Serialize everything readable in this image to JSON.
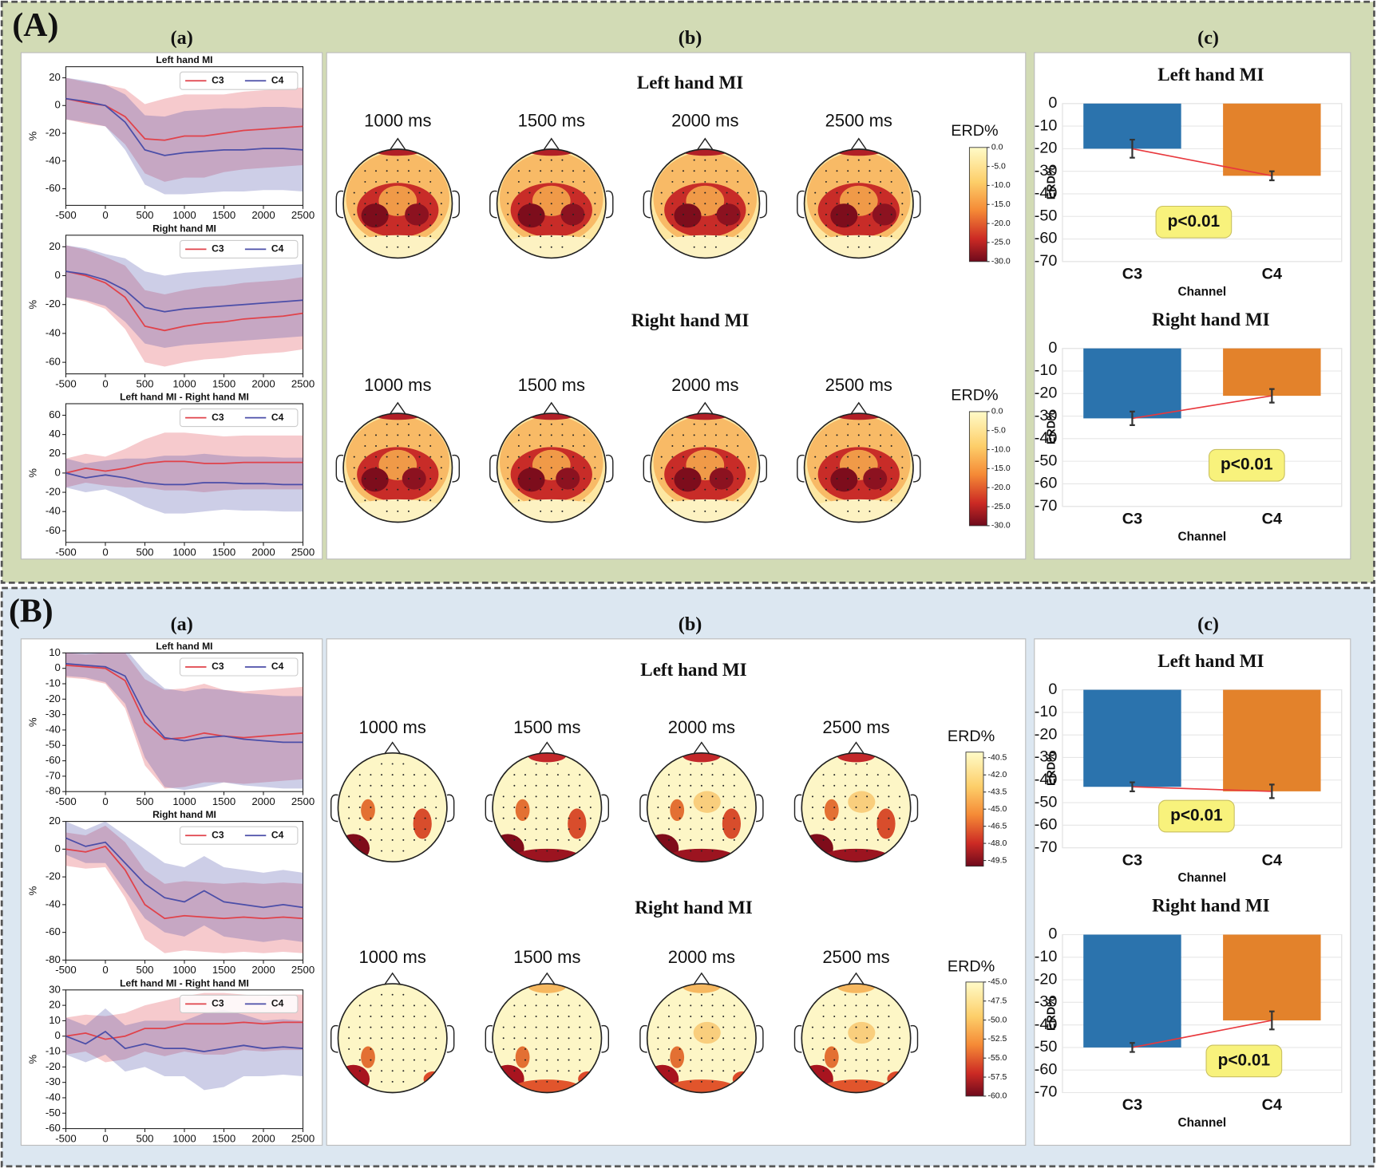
{
  "panels": [
    {
      "label": "(A)",
      "sub_labels": [
        "(a)",
        "(b)",
        "(c)"
      ]
    },
    {
      "label": "(B)",
      "sub_labels": [
        "(a)",
        "(b)",
        "(c)"
      ]
    }
  ],
  "chart_data": [
    {
      "type": "line",
      "title": "Left hand MI",
      "ylabel": "%",
      "x": [
        -500,
        -250,
        0,
        250,
        500,
        750,
        1000,
        1250,
        1500,
        1750,
        2000,
        2250,
        2500
      ],
      "xlim": [
        -500,
        2500
      ],
      "xticks": [
        -500,
        0,
        500,
        1000,
        1500,
        2000,
        2500
      ],
      "ylim": [
        -72,
        28
      ],
      "yticks": [
        -60,
        -40,
        -20,
        0,
        20
      ],
      "legend": "upper right",
      "series": [
        {
          "name": "C3",
          "color": "#e0424a",
          "values": [
            5,
            2,
            0,
            -8,
            -24,
            -25,
            -22,
            -22,
            -20,
            -18,
            -17,
            -16,
            -15
          ],
          "error": [
            15,
            15,
            15,
            20,
            25,
            30,
            30,
            30,
            28,
            28,
            28,
            28,
            28
          ]
        },
        {
          "name": "C4",
          "color": "#4b4ea8",
          "values": [
            5,
            3,
            0,
            -12,
            -32,
            -36,
            -34,
            -33,
            -32,
            -32,
            -31,
            -31,
            -32
          ],
          "error": [
            15,
            15,
            15,
            20,
            25,
            28,
            30,
            30,
            30,
            30,
            30,
            30,
            30
          ]
        }
      ]
    },
    {
      "type": "line",
      "title": "Right hand MI",
      "ylabel": "%",
      "x": [
        -500,
        -250,
        0,
        250,
        500,
        750,
        1000,
        1250,
        1500,
        1750,
        2000,
        2250,
        2500
      ],
      "xlim": [
        -500,
        2500
      ],
      "xticks": [
        -500,
        0,
        500,
        1000,
        1500,
        2000,
        2500
      ],
      "ylim": [
        -68,
        28
      ],
      "yticks": [
        -60,
        -40,
        -20,
        0,
        20
      ],
      "legend": "upper right",
      "series": [
        {
          "name": "C3",
          "color": "#e0424a",
          "values": [
            3,
            0,
            -5,
            -15,
            -35,
            -38,
            -35,
            -33,
            -32,
            -30,
            -29,
            -28,
            -26
          ],
          "error": [
            18,
            18,
            18,
            22,
            25,
            25,
            25,
            25,
            25,
            25,
            25,
            25,
            25
          ]
        },
        {
          "name": "C4",
          "color": "#4b4ea8",
          "values": [
            3,
            1,
            -3,
            -10,
            -22,
            -25,
            -23,
            -22,
            -21,
            -20,
            -19,
            -18,
            -17
          ],
          "error": [
            18,
            18,
            18,
            22,
            25,
            25,
            25,
            25,
            25,
            25,
            25,
            25,
            25
          ]
        }
      ]
    },
    {
      "type": "line",
      "title": "Left hand MI - Right hand MI",
      "ylabel": "%",
      "x": [
        -500,
        -250,
        0,
        250,
        500,
        750,
        1000,
        1250,
        1500,
        1750,
        2000,
        2250,
        2500
      ],
      "xlim": [
        -500,
        2500
      ],
      "xticks": [
        -500,
        0,
        500,
        1000,
        1500,
        2000,
        2500
      ],
      "ylim": [
        -72,
        72
      ],
      "yticks": [
        -60,
        -40,
        -20,
        0,
        20,
        40,
        60
      ],
      "legend": "upper right",
      "series": [
        {
          "name": "C3",
          "color": "#e0424a",
          "values": [
            0,
            5,
            2,
            5,
            10,
            12,
            12,
            10,
            10,
            11,
            11,
            11,
            11
          ],
          "error": [
            15,
            15,
            15,
            20,
            25,
            30,
            30,
            30,
            28,
            28,
            28,
            28,
            28
          ]
        },
        {
          "name": "C4",
          "color": "#4b4ea8",
          "values": [
            0,
            -5,
            -2,
            -5,
            -10,
            -12,
            -12,
            -10,
            -10,
            -11,
            -11,
            -12,
            -12
          ],
          "error": [
            15,
            15,
            15,
            20,
            25,
            30,
            30,
            30,
            28,
            28,
            28,
            28,
            28
          ]
        }
      ]
    },
    {
      "type": "topomap",
      "title": "Left hand MI",
      "times": [
        "1000 ms",
        "1500 ms",
        "2000 ms",
        "2500 ms"
      ],
      "colorbar_label": "ERD%",
      "clim": [
        0,
        -30
      ],
      "cticks": [
        {
          "value": 0,
          "label": "0.0"
        },
        {
          "value": -5,
          "label": "-5.0"
        },
        {
          "value": -10,
          "label": "-10.0"
        },
        {
          "value": -15,
          "label": "-15.0"
        },
        {
          "value": -20,
          "label": "-20.0"
        },
        {
          "value": -25,
          "label": "-25.0"
        },
        {
          "value": -30,
          "label": "-30.0"
        }
      ]
    },
    {
      "type": "topomap",
      "title": "Right hand MI",
      "times": [
        "1000 ms",
        "1500 ms",
        "2000 ms",
        "2500 ms"
      ],
      "colorbar_label": "ERD%",
      "clim": [
        0,
        -30
      ],
      "cticks": [
        {
          "value": 0,
          "label": "0.0"
        },
        {
          "value": -5,
          "label": "-5.0"
        },
        {
          "value": -10,
          "label": "-10.0"
        },
        {
          "value": -15,
          "label": "-15.0"
        },
        {
          "value": -20,
          "label": "-20.0"
        },
        {
          "value": -25,
          "label": "-25.0"
        },
        {
          "value": -30,
          "label": "-30.0"
        }
      ]
    },
    {
      "type": "bar",
      "title": "Left hand MI",
      "xlabel": "Channel",
      "ylabel": "ERD%",
      "categories": [
        "C3",
        "C4"
      ],
      "values": [
        -20,
        -32
      ],
      "errors": [
        4,
        2
      ],
      "colors": [
        "#2b73ad",
        "#e3822b"
      ],
      "ylim": [
        -70,
        0
      ],
      "yticks": [
        0,
        -10,
        -20,
        -30,
        -40,
        -50,
        -60,
        -70
      ],
      "grid": true,
      "annotation": "p<0.01",
      "line_color": "#e8383d"
    },
    {
      "type": "bar",
      "title": "Right hand MI",
      "xlabel": "Channel",
      "ylabel": "ERD%",
      "categories": [
        "C3",
        "C4"
      ],
      "values": [
        -31,
        -21
      ],
      "errors": [
        3,
        3
      ],
      "colors": [
        "#2b73ad",
        "#e3822b"
      ],
      "ylim": [
        -70,
        0
      ],
      "yticks": [
        0,
        -10,
        -20,
        -30,
        -40,
        -50,
        -60,
        -70
      ],
      "grid": true,
      "annotation": "p<0.01",
      "line_color": "#e8383d"
    },
    {
      "type": "line",
      "title": "Left hand MI",
      "ylabel": "%",
      "x": [
        -500,
        -250,
        0,
        250,
        500,
        750,
        1000,
        1250,
        1500,
        1750,
        2000,
        2250,
        2500
      ],
      "xlim": [
        -500,
        2500
      ],
      "xticks": [
        -500,
        0,
        500,
        1000,
        1500,
        2000,
        2500
      ],
      "ylim": [
        -80,
        10
      ],
      "yticks": [
        -80,
        -70,
        -60,
        -50,
        -40,
        -30,
        -20,
        -10,
        0,
        10
      ],
      "legend": "upper right",
      "series": [
        {
          "name": "C3",
          "color": "#e0424a",
          "values": [
            2,
            1,
            0,
            -8,
            -35,
            -46,
            -45,
            -42,
            -44,
            -45,
            -44,
            -43,
            -42
          ],
          "error": [
            8,
            8,
            10,
            18,
            28,
            32,
            32,
            32,
            30,
            30,
            30,
            30,
            30
          ]
        },
        {
          "name": "C4",
          "color": "#4b4ea8",
          "values": [
            3,
            2,
            1,
            -5,
            -30,
            -45,
            -47,
            -45,
            -44,
            -46,
            -47,
            -48,
            -48
          ],
          "error": [
            8,
            8,
            10,
            18,
            28,
            32,
            32,
            32,
            30,
            30,
            30,
            30,
            30
          ]
        }
      ]
    },
    {
      "type": "line",
      "title": "Right hand MI",
      "ylabel": "%",
      "x": [
        -500,
        -250,
        0,
        250,
        500,
        750,
        1000,
        1250,
        1500,
        1750,
        2000,
        2250,
        2500
      ],
      "xlim": [
        -500,
        2500
      ],
      "xticks": [
        -500,
        0,
        500,
        1000,
        1500,
        2000,
        2500
      ],
      "ylim": [
        -80,
        20
      ],
      "yticks": [
        -80,
        -60,
        -40,
        -20,
        0,
        20
      ],
      "legend": "upper right",
      "series": [
        {
          "name": "C3",
          "color": "#e0424a",
          "values": [
            0,
            -2,
            2,
            -15,
            -40,
            -50,
            -48,
            -49,
            -50,
            -49,
            -50,
            -49,
            -50
          ],
          "error": [
            12,
            12,
            15,
            20,
            25,
            25,
            25,
            25,
            25,
            25,
            25,
            25,
            25
          ]
        },
        {
          "name": "C4",
          "color": "#4b4ea8",
          "values": [
            8,
            2,
            5,
            -10,
            -25,
            -35,
            -38,
            -30,
            -38,
            -40,
            -42,
            -40,
            -42
          ],
          "error": [
            12,
            12,
            15,
            20,
            25,
            25,
            25,
            25,
            25,
            25,
            25,
            25,
            25
          ]
        }
      ]
    },
    {
      "type": "line",
      "title": "Left hand MI - Right hand MI",
      "ylabel": "%",
      "x": [
        -500,
        -250,
        0,
        250,
        500,
        750,
        1000,
        1250,
        1500,
        1750,
        2000,
        2250,
        2500
      ],
      "xlim": [
        -500,
        2500
      ],
      "xticks": [
        -500,
        0,
        500,
        1000,
        1500,
        2000,
        2500
      ],
      "ylim": [
        -60,
        30
      ],
      "yticks": [
        -60,
        -50,
        -40,
        -30,
        -20,
        -10,
        0,
        10,
        20,
        30
      ],
      "legend": "upper right",
      "series": [
        {
          "name": "C3",
          "color": "#e0424a",
          "values": [
            0,
            2,
            -2,
            0,
            5,
            5,
            8,
            8,
            8,
            9,
            8,
            9,
            9
          ],
          "error": [
            12,
            12,
            15,
            15,
            15,
            18,
            18,
            20,
            20,
            18,
            18,
            18,
            18
          ]
        },
        {
          "name": "C4",
          "color": "#4b4ea8",
          "values": [
            0,
            -5,
            3,
            -8,
            -5,
            -8,
            -8,
            -10,
            -8,
            -6,
            -8,
            -7,
            -8
          ],
          "error": [
            12,
            12,
            15,
            15,
            15,
            18,
            18,
            25,
            25,
            20,
            18,
            18,
            18
          ]
        }
      ]
    },
    {
      "type": "topomap",
      "title": "Left hand MI",
      "times": [
        "1000 ms",
        "1500 ms",
        "2000 ms",
        "2500 ms"
      ],
      "colorbar_label": "ERD%",
      "clim": [
        -40,
        -50
      ],
      "cticks": [
        {
          "value": -40.5,
          "label": "-40.5"
        },
        {
          "value": -42,
          "label": "-42.0"
        },
        {
          "value": -43.5,
          "label": "-43.5"
        },
        {
          "value": -45,
          "label": "-45.0"
        },
        {
          "value": -46.5,
          "label": "-46.5"
        },
        {
          "value": -48,
          "label": "-48.0"
        },
        {
          "value": -49.5,
          "label": "-49.5"
        }
      ]
    },
    {
      "type": "topomap",
      "title": "Right hand MI",
      "times": [
        "1000 ms",
        "1500 ms",
        "2000 ms",
        "2500 ms"
      ],
      "colorbar_label": "ERD%",
      "clim": [
        -45,
        -60
      ],
      "cticks": [
        {
          "value": -45,
          "label": "-45.0"
        },
        {
          "value": -47.5,
          "label": "-47.5"
        },
        {
          "value": -50,
          "label": "-50.0"
        },
        {
          "value": -52.5,
          "label": "-52.5"
        },
        {
          "value": -55,
          "label": "-55.0"
        },
        {
          "value": -57.5,
          "label": "-57.5"
        },
        {
          "value": -60,
          "label": "-60.0"
        }
      ]
    },
    {
      "type": "bar",
      "title": "Left hand MI",
      "xlabel": "Channel",
      "ylabel": "ERD%",
      "categories": [
        "C3",
        "C4"
      ],
      "values": [
        -43,
        -45
      ],
      "errors": [
        2,
        3
      ],
      "colors": [
        "#2b73ad",
        "#e3822b"
      ],
      "ylim": [
        -70,
        0
      ],
      "yticks": [
        0,
        -10,
        -20,
        -30,
        -40,
        -50,
        -60,
        -70
      ],
      "grid": true,
      "annotation": "p<0.01",
      "line_color": "#e8383d"
    },
    {
      "type": "bar",
      "title": "Right hand MI",
      "xlabel": "Channel",
      "ylabel": "ERD%",
      "categories": [
        "C3",
        "C4"
      ],
      "values": [
        -50,
        -38
      ],
      "errors": [
        2,
        4
      ],
      "colors": [
        "#2b73ad",
        "#e3822b"
      ],
      "ylim": [
        -70,
        0
      ],
      "yticks": [
        0,
        -10,
        -20,
        -30,
        -40,
        -50,
        -60,
        -70
      ],
      "grid": true,
      "annotation": "p<0.01",
      "line_color": "#e8383d"
    }
  ]
}
